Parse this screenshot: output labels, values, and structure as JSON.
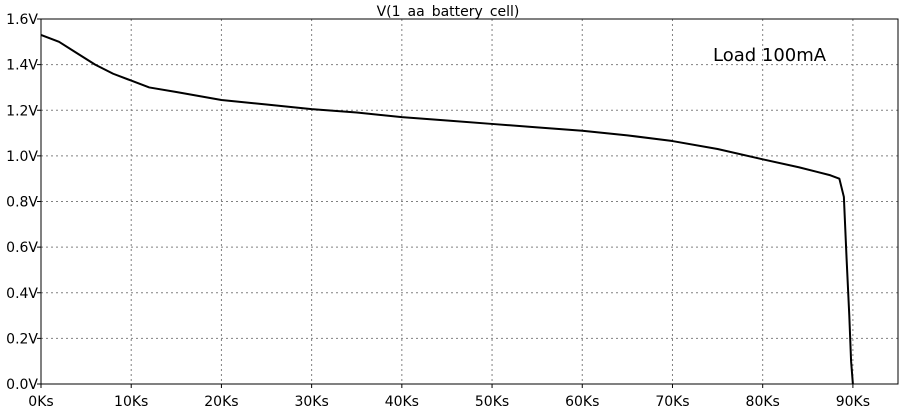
{
  "chart_data": {
    "type": "line",
    "title": "V(1_aa_battery_cell)",
    "annotation": "Load 100mA",
    "xlabel": "",
    "ylabel": "",
    "xlim": [
      0,
      95000
    ],
    "ylim": [
      0,
      1.6
    ],
    "x_ticks": [
      0,
      10000,
      20000,
      30000,
      40000,
      50000,
      60000,
      70000,
      80000,
      90000
    ],
    "x_tick_labels": [
      "0Ks",
      "10Ks",
      "20Ks",
      "30Ks",
      "40Ks",
      "50Ks",
      "60Ks",
      "70Ks",
      "80Ks",
      "90Ks"
    ],
    "y_ticks": [
      0,
      0.2,
      0.4,
      0.6,
      0.8,
      1.0,
      1.2,
      1.4,
      1.6
    ],
    "y_tick_labels": [
      "0.0V",
      "0.2V",
      "0.4V",
      "0.6V",
      "0.8V",
      "1.0V",
      "1.2V",
      "1.4V",
      "1.6V"
    ],
    "grid": true,
    "grid_style": "dotted",
    "line_color": "#000000",
    "series": [
      {
        "x": [
          0,
          2000,
          4000,
          6000,
          8000,
          10000,
          12000,
          15000,
          20000,
          25000,
          30000,
          35000,
          40000,
          45000,
          50000,
          55000,
          60000,
          65000,
          70000,
          75000,
          80000,
          84000,
          86000,
          87500,
          88500,
          89000,
          89300,
          89600,
          89800,
          90000
        ],
        "y": [
          1.53,
          1.5,
          1.45,
          1.4,
          1.36,
          1.33,
          1.3,
          1.28,
          1.245,
          1.225,
          1.205,
          1.19,
          1.17,
          1.155,
          1.14,
          1.125,
          1.11,
          1.09,
          1.065,
          1.03,
          0.985,
          0.95,
          0.93,
          0.915,
          0.9,
          0.82,
          0.55,
          0.3,
          0.1,
          0.0
        ]
      }
    ]
  }
}
